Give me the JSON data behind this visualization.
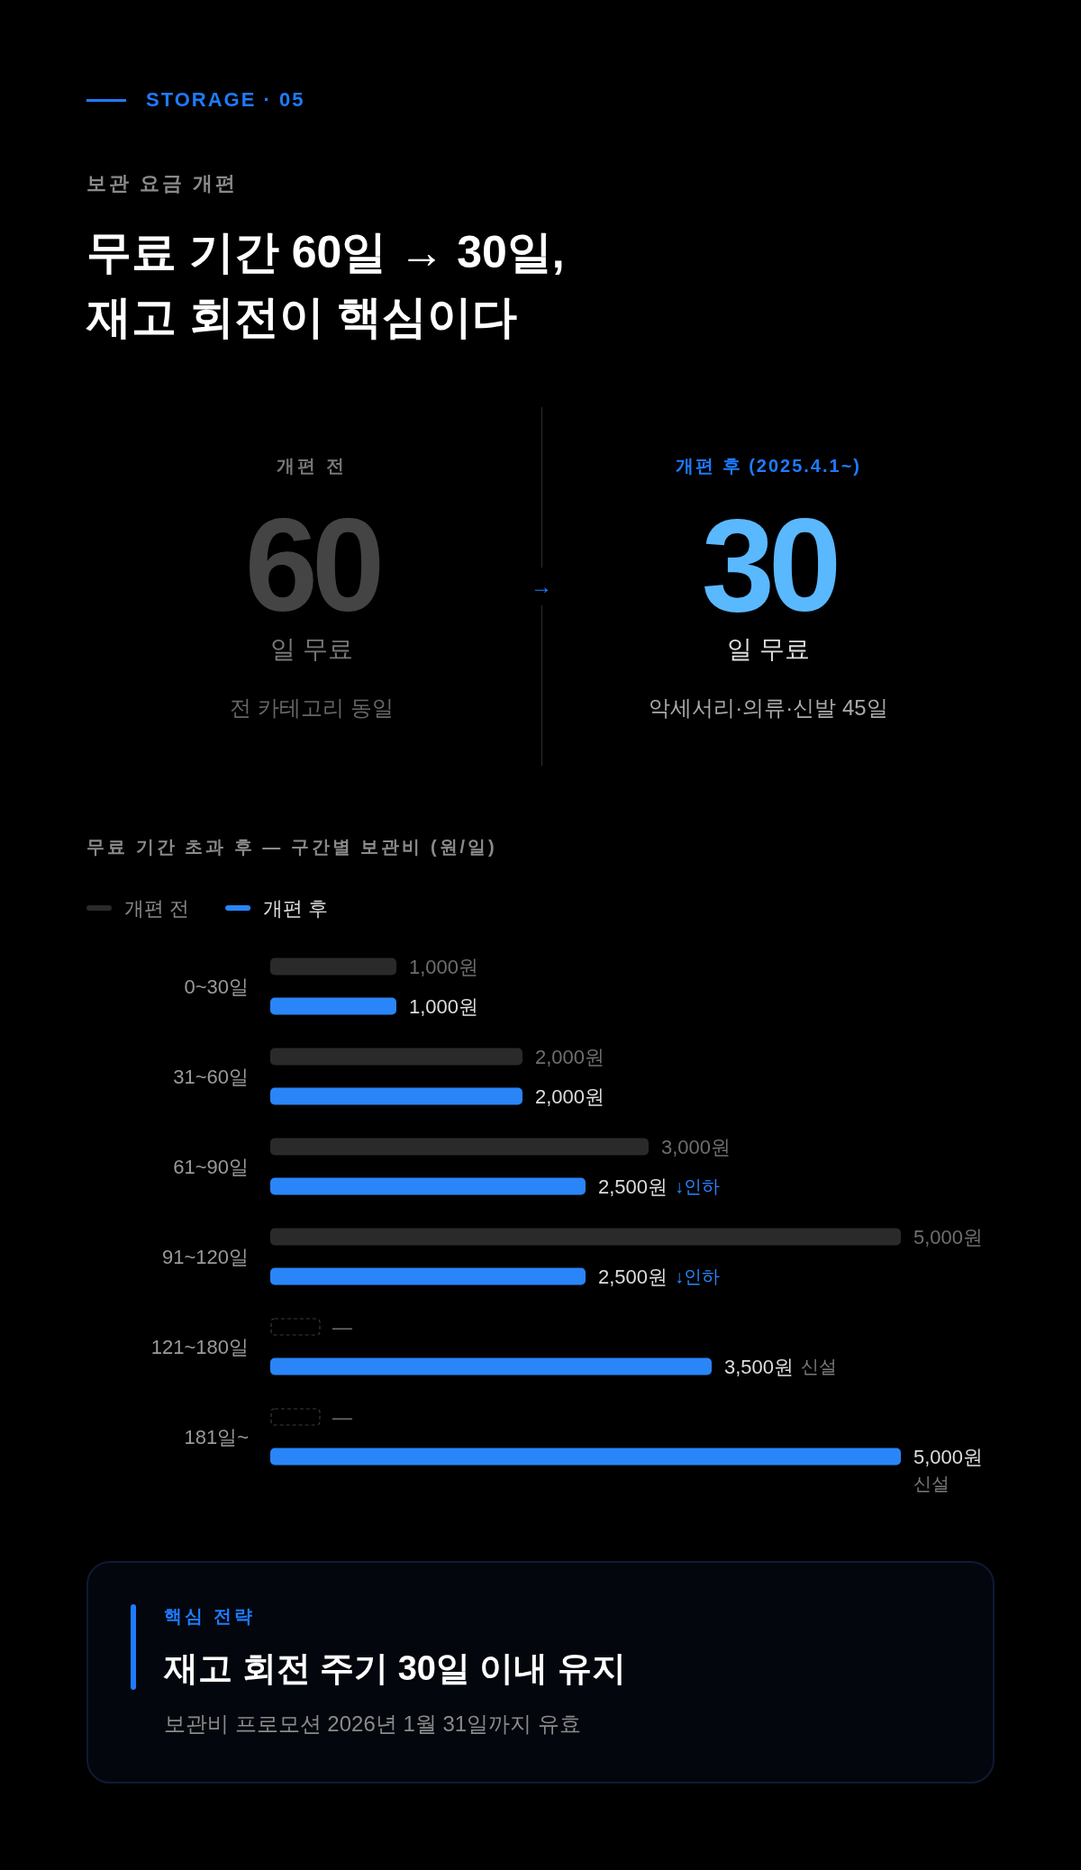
{
  "chart_data": [
    {
      "type": "other",
      "subtitle": "보관 요금 개편",
      "title": "무료 기간 60일 → 30일, 재고 회전이 핵심이다",
      "annotations": [
        "STORAGE · 05"
      ]
    },
    {
      "type": "other",
      "annotations": [
        "개편 전",
        "60",
        "일 무료",
        "전 카테고리 동일",
        "→",
        "개편 후 (2025.4.1~)",
        "30",
        "일 무료",
        "악세서리·의류·신발 45일"
      ]
    },
    {
      "type": "bar",
      "orientation": "horizontal",
      "title": "무료 기간 초과 후 — 구간별 보관비 (원/일)",
      "legend": "top left",
      "categories": [
        "0~30일",
        "31~60일",
        "61~90일",
        "91~120일",
        "121~180일",
        "181일~"
      ],
      "series": [
        {
          "name": "개편 전",
          "color": "#2a2a2a",
          "values": [
            1000,
            2000,
            3000,
            5000,
            null,
            null
          ],
          "value_labels": [
            "1,000원",
            "2,000원",
            "3,000원",
            "5,000원",
            "—",
            "—"
          ]
        },
        {
          "name": "개편 후",
          "color": "#2a85f8",
          "values": [
            1000,
            2000,
            2500,
            2500,
            3500,
            5000
          ],
          "value_labels": [
            "1,000원",
            "2,000원",
            "2,500원 ↓인하",
            "2,500원 ↓인하",
            "3,500원 신설",
            "5,000원 신설"
          ]
        }
      ]
    },
    {
      "type": "other",
      "subtitle": "핵심 전략",
      "title": "재고 회전 주기 30일 이내 유지",
      "annotations": [
        "보관비 프로모션 2026년 1월 31일까지 유효"
      ]
    }
  ]
}
